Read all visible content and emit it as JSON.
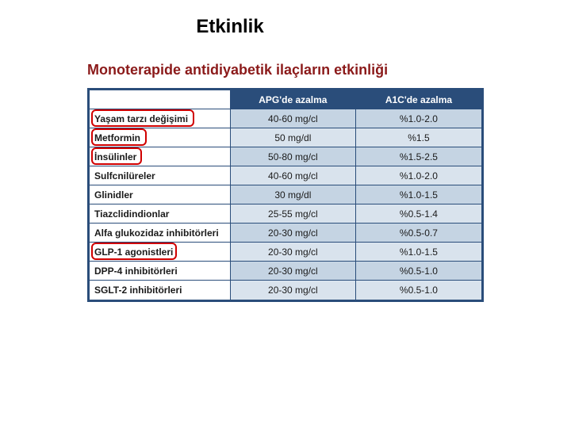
{
  "title": "Etkinlik",
  "subtitle": "Monoterapide antidiyabetik ilaçların etkinliği",
  "subtitle_color": "#8b1a1a",
  "table": {
    "border_color": "#2a4d7a",
    "header_bg": "#2a4d7a",
    "header_fg": "#ffffff",
    "row_bg_a": "#c5d4e3",
    "row_bg_b": "#d9e3ed",
    "highlight_color": "#d00000",
    "columns": {
      "label": "",
      "apg": "APG'de azalma",
      "a1c": "A1C'de azalma"
    },
    "rows": [
      {
        "label": "Yaşam tarzı değişimi",
        "apg": "40-60 mg/cl",
        "a1c": "%1.0-2.0",
        "highlight": true,
        "hw": 130
      },
      {
        "label": "Metformin",
        "apg": "50 mg/dl",
        "a1c": "%1.5",
        "highlight": true,
        "hw": 70
      },
      {
        "label": "İnsülinler",
        "apg": "50-80 mg/cl",
        "a1c": "%1.5-2.5",
        "highlight": true,
        "hw": 64
      },
      {
        "label": "Sulfcnilüreler",
        "apg": "40-60 mg/cl",
        "a1c": "%1.0-2.0",
        "highlight": false
      },
      {
        "label": "Glinidler",
        "apg": "30 mg/dl",
        "a1c": "%1.0-1.5",
        "highlight": false
      },
      {
        "label": "Tiazclidindionlar",
        "apg": "25-55 mg/cl",
        "a1c": "%0.5-1.4",
        "highlight": false
      },
      {
        "label": "Alfa glukozidaz inhibitörleri",
        "apg": "20-30 mg/cl",
        "a1c": "%0.5-0.7",
        "highlight": false
      },
      {
        "label": "GLP-1 agonistleri",
        "apg": "20-30 mg/cl",
        "a1c": "%1.0-1.5",
        "highlight": true,
        "hw": 108
      },
      {
        "label": "DPP-4 inhibitörleri",
        "apg": "20-30 mg/cl",
        "a1c": "%0.5-1.0",
        "highlight": false
      },
      {
        "label": "SGLT-2 inhibitörleri",
        "apg": "20-30 mg/cl",
        "a1c": "%0.5-1.0",
        "highlight": false
      }
    ]
  }
}
